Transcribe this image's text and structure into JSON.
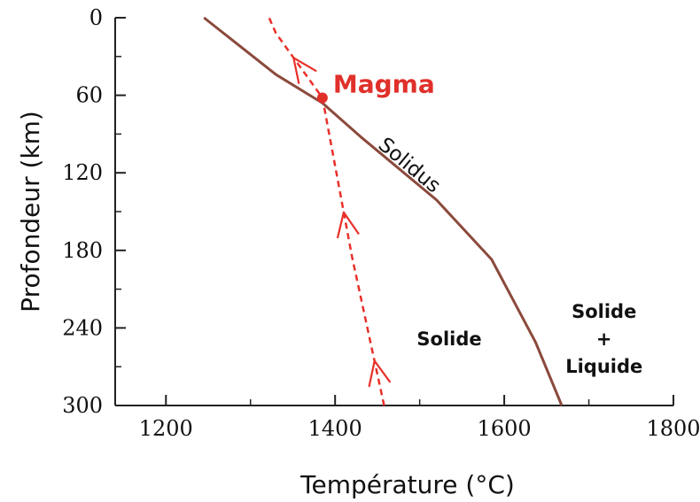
{
  "chart_data": {
    "type": "line",
    "xlabel": "Température (°C)",
    "ylabel": "Profondeur (km)",
    "xlim": [
      1140,
      1800
    ],
    "ylim": [
      0,
      300
    ],
    "y_inverted": true,
    "x_ticks": [
      1200,
      1400,
      1600,
      1800
    ],
    "y_ticks": [
      0,
      60,
      120,
      180,
      240,
      300
    ],
    "grid": false,
    "series": [
      {
        "name": "Solidus",
        "style": "solid",
        "color": "#8b4a3c",
        "points": [
          [
            1245,
            0
          ],
          [
            1330,
            44
          ],
          [
            1385,
            66
          ],
          [
            1430,
            92
          ],
          [
            1520,
            141
          ],
          [
            1585,
            187
          ],
          [
            1637,
            251
          ],
          [
            1668,
            300
          ]
        ]
      },
      {
        "style": "dashed",
        "color": "#e8302a",
        "arrow_direction": "upward",
        "points": [
          [
            1458,
            300
          ],
          [
            1420,
            185
          ],
          [
            1385,
            62
          ],
          [
            1330,
            12
          ],
          [
            1322,
            0
          ]
        ]
      }
    ],
    "point": {
      "label": "Magma",
      "x": 1385,
      "y": 62,
      "color": "#e0302a"
    },
    "regions": [
      {
        "label": "Solide",
        "x": 1535,
        "y": 248
      },
      {
        "label": "Solide\n+\nLiquide",
        "x": 1718,
        "y": 248
      }
    ]
  }
}
